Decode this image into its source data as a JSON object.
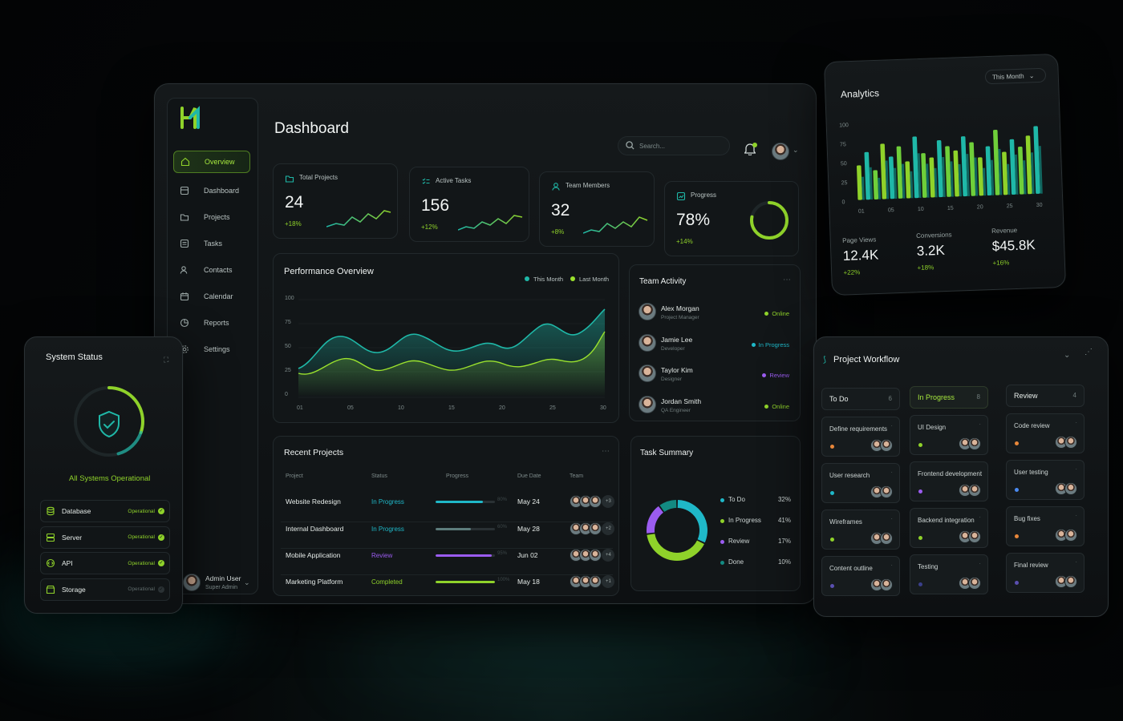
{
  "logo": "H",
  "sidebar": {
    "items": [
      {
        "label": "Overview",
        "icon": "home-icon"
      },
      {
        "label": "Dashboard",
        "icon": "grid-icon"
      },
      {
        "label": "Projects",
        "icon": "folder-icon"
      },
      {
        "label": "Tasks",
        "icon": "checklist-icon"
      },
      {
        "label": "Contacts",
        "icon": "users-icon"
      },
      {
        "label": "Calendar",
        "icon": "calendar-icon"
      },
      {
        "label": "Reports",
        "icon": "chart-icon"
      },
      {
        "label": "Settings",
        "icon": "gear-icon"
      }
    ],
    "user": {
      "name": "Admin User",
      "role": "Super Admin"
    }
  },
  "header": {
    "title": "Dashboard",
    "search_placeholder": "Search..."
  },
  "stats": [
    {
      "label": "Total Projects",
      "value": "24",
      "delta": "+18%",
      "icon": "folder-icon"
    },
    {
      "label": "Active Tasks",
      "value": "156",
      "delta": "+12%",
      "icon": "tasks-icon"
    },
    {
      "label": "Team Members",
      "value": "32",
      "delta": "+8%",
      "icon": "user-icon"
    },
    {
      "label": "Progress",
      "value": "78%",
      "delta": "+14%",
      "icon": "progress-icon",
      "progress": 0.78
    }
  ],
  "performance": {
    "title": "Performance Overview",
    "legend": [
      "This Month",
      "Last Month"
    ],
    "yticks": [
      "100",
      "75",
      "50",
      "25",
      "0"
    ],
    "xticks": [
      "01",
      "05",
      "10",
      "15",
      "20",
      "25",
      "30"
    ],
    "colors": {
      "this_month": "#1fb8a8",
      "last_month": "#9be22d"
    }
  },
  "team": {
    "title": "Team Activity",
    "members": [
      {
        "name": "Alex Morgan",
        "role": "Project Manager",
        "status": "Online",
        "color": "#8fd22a"
      },
      {
        "name": "Jamie Lee",
        "role": "Developer",
        "status": "In Progress",
        "color": "#1fb8c8"
      },
      {
        "name": "Taylor Kim",
        "role": "Designer",
        "status": "Review",
        "color": "#9b5cf0"
      },
      {
        "name": "Jordan Smith",
        "role": "QA Engineer",
        "status": "Online",
        "color": "#8fd22a"
      }
    ]
  },
  "projects": {
    "title": "Recent Projects",
    "headers": [
      "Project",
      "Status",
      "Progress",
      "Due Date",
      "Team"
    ],
    "rows": [
      {
        "name": "Website Redesign",
        "status": "In Progress",
        "status_color": "#1fb8c8",
        "pct_label": "80%",
        "progress": 0.8,
        "bar_color": "#1fb8c8",
        "due": "May 24",
        "more": "+3"
      },
      {
        "name": "Internal Dashboard",
        "status": "In Progress",
        "status_color": "#1fb8c8",
        "pct_label": "60%",
        "progress": 0.6,
        "bar_color": "#5d7c7c",
        "due": "May 28",
        "more": "+2"
      },
      {
        "name": "Mobile Application",
        "status": "Review",
        "status_color": "#9b5cf0",
        "pct_label": "95%",
        "progress": 0.95,
        "bar_color": "#9b5cf0",
        "due": "Jun 02",
        "more": "+4"
      },
      {
        "name": "Marketing Platform",
        "status": "Completed",
        "status_color": "#8fd22a",
        "pct_label": "100%",
        "progress": 1.0,
        "bar_color": "#8fd22a",
        "due": "May 18",
        "more": "+1"
      }
    ]
  },
  "task_summary": {
    "title": "Task Summary",
    "items": [
      {
        "label": "To Do",
        "pct": "32%",
        "value": 32,
        "color": "#1fb8c8"
      },
      {
        "label": "In Progress",
        "pct": "41%",
        "value": 41,
        "color": "#8fd22a"
      },
      {
        "label": "Review",
        "pct": "17%",
        "value": 17,
        "color": "#9b5cf0"
      },
      {
        "label": "Done",
        "pct": "10%",
        "value": 10,
        "color": "#138a82"
      }
    ]
  },
  "analytics": {
    "title": "Analytics",
    "filter": "This Month",
    "yticks": [
      "100",
      "75",
      "50",
      "25",
      "0"
    ],
    "xticks": [
      "01",
      "05",
      "10",
      "15",
      "20",
      "25",
      "30"
    ],
    "metrics": [
      {
        "label": "Page Views",
        "value": "12.4K",
        "delta": "+22%"
      },
      {
        "label": "Conversions",
        "value": "3.2K",
        "delta": "+18%"
      },
      {
        "label": "Revenue",
        "value": "$45.8K",
        "delta": "+16%"
      }
    ]
  },
  "chart_data": {
    "type": "bar",
    "title": "Analytics",
    "ylim": [
      0,
      100
    ],
    "series": [
      {
        "values": [
          45,
          62,
          38,
          72,
          55,
          68,
          48,
          80,
          58,
          52,
          74,
          66,
          60,
          78,
          70,
          50,
          64,
          85,
          56,
          72,
          62,
          76,
          88
        ]
      },
      {
        "values": [
          30,
          42,
          28,
          50,
          40,
          45,
          35,
          58,
          44,
          38,
          52,
          46,
          42,
          55,
          50,
          36,
          46,
          60,
          40,
          52,
          44,
          54,
          62
        ]
      }
    ]
  },
  "system": {
    "title": "System Status",
    "summary": "All Systems Operational",
    "services": [
      {
        "name": "Database",
        "status": "Operational",
        "icon": "database-icon"
      },
      {
        "name": "Server",
        "status": "Operational",
        "icon": "server-icon"
      },
      {
        "name": "API",
        "status": "Operational",
        "icon": "api-icon"
      },
      {
        "name": "Storage",
        "status": "Operational",
        "icon": "storage-icon"
      }
    ]
  },
  "workflow": {
    "title": "Project Workflow",
    "columns": [
      {
        "name": "To Do",
        "count": "6",
        "cards": [
          "Define requirements",
          "User research",
          "Wireframes",
          "Content outline"
        ]
      },
      {
        "name": "In Progress",
        "count": "8",
        "cards": [
          "UI Design",
          "Frontend development",
          "Backend integration",
          "Testing"
        ]
      },
      {
        "name": "Review",
        "count": "4",
        "cards": [
          "Code review",
          "User testing",
          "Bug fixes",
          "Final review"
        ]
      }
    ]
  }
}
